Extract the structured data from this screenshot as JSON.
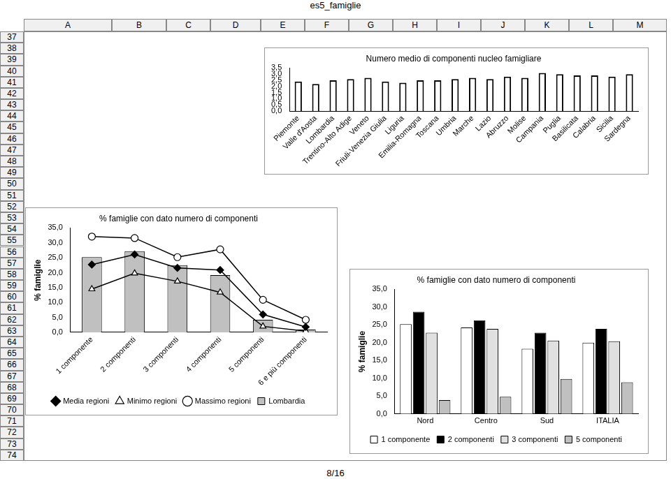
{
  "page": {
    "title": "es5_famiglie",
    "columns": [
      "A",
      "B",
      "C",
      "D",
      "E",
      "F",
      "G",
      "H",
      "I",
      "J",
      "K",
      "L",
      "M"
    ],
    "rows": [
      37,
      38,
      39,
      40,
      41,
      42,
      43,
      44,
      45,
      46,
      47,
      48,
      49,
      50,
      51,
      52,
      53,
      54,
      55,
      56,
      57,
      58,
      59,
      60,
      61,
      62,
      63,
      64,
      65,
      66,
      67,
      68,
      69,
      70,
      71,
      72,
      73,
      74
    ],
    "footer": "8/16"
  },
  "chart_data": [
    {
      "type": "bar",
      "title": "Numero medio di componenti nucleo famigliare",
      "categories": [
        "Piemonte",
        "Valle d'Aosta",
        "Lombardia",
        "Trentino-Alto Adige",
        "Veneto",
        "Friuli-Venezia Giulia",
        "Liguria",
        "Emilia-Romagna",
        "Toscana",
        "Umbria",
        "Marche",
        "Lazio",
        "Abruzzo",
        "Molise",
        "Campania",
        "Puglia",
        "Basilicata",
        "Calabria",
        "Sicilia",
        "Sardegna"
      ],
      "values": [
        2.4,
        2.2,
        2.5,
        2.6,
        2.7,
        2.4,
        2.3,
        2.5,
        2.5,
        2.6,
        2.7,
        2.6,
        2.8,
        2.7,
        3.1,
        3.0,
        2.9,
        2.9,
        2.8,
        3.0
      ],
      "color": "#ffffff",
      "ylim": [
        0,
        3.5
      ],
      "yticks": [
        {
          "value": 0,
          "label": "0,0"
        },
        {
          "value": 0.5,
          "label": "0,5"
        },
        {
          "value": 1,
          "label": "1,0"
        },
        {
          "value": 1.5,
          "label": "1,5"
        },
        {
          "value": 2,
          "label": "2,0"
        },
        {
          "value": 2.5,
          "label": "2,5"
        },
        {
          "value": 3,
          "label": "3,0"
        },
        {
          "value": 3.5,
          "label": "3,5"
        }
      ],
      "grid": false
    },
    {
      "type": "bar",
      "title": "% famiglie con dato numero di componenti",
      "y_label": "% famiglie",
      "categories": [
        "1 componente",
        "2 componenti",
        "3 componenti",
        "4 componenti",
        "5 componenti",
        "6 e più componenti"
      ],
      "series": [
        {
          "name": "Lombardia",
          "type": "bar",
          "color": "#c0c0c0",
          "marker": "square",
          "values": [
            25.2,
            27.2,
            22.5,
            19.2,
            4.2,
            0.9
          ]
        },
        {
          "name": "Media regioni",
          "type": "line",
          "color": "#000000",
          "marker": "diamond",
          "line_style": "solid",
          "values": [
            22.7,
            26.1,
            21.6,
            20.9,
            6.0,
            1.8
          ]
        },
        {
          "name": "Minimo regioni",
          "type": "line",
          "color": "#000000",
          "marker": "triangle-open",
          "line_style": "solid",
          "values": [
            14.5,
            19.8,
            17.1,
            13.4,
            2.0,
            0.4
          ]
        },
        {
          "name": "Massimo regioni",
          "type": "line",
          "color": "#000000",
          "marker": "circle-open",
          "line_style": "solid",
          "values": [
            32.1,
            31.6,
            25.2,
            27.8,
            10.9,
            4.2
          ]
        }
      ],
      "ylim": [
        0,
        35
      ],
      "yticks": [
        {
          "value": 0,
          "label": "0,0"
        },
        {
          "value": 5,
          "label": "5,0"
        },
        {
          "value": 10,
          "label": "10,0"
        },
        {
          "value": 15,
          "label": "15,0"
        },
        {
          "value": 20,
          "label": "20,0"
        },
        {
          "value": 25,
          "label": "25,0"
        },
        {
          "value": 30,
          "label": "30,0"
        },
        {
          "value": 35,
          "label": "35,0"
        }
      ],
      "grid": false,
      "legend": "bottom"
    },
    {
      "type": "bar",
      "title": "% famiglie con dato numero di componenti",
      "y_label": "% famiglie",
      "categories": [
        "Nord",
        "Centro",
        "Sud",
        "ITALIA"
      ],
      "series": [
        {
          "name": "1 componente",
          "color": "#ffffff",
          "values": [
            25.2,
            24.3,
            18.3,
            20.0
          ]
        },
        {
          "name": "2 componenti",
          "color": "#000000",
          "values": [
            28.7,
            26.3,
            22.8,
            23.9
          ]
        },
        {
          "name": "3 componenti",
          "color": "#e0e0e0",
          "values": [
            22.8,
            23.9,
            20.6,
            20.4
          ]
        },
        {
          "name": "5 componenti",
          "color": "#c0c0c0",
          "values": [
            3.9,
            4.8,
            9.8,
            8.9
          ]
        }
      ],
      "ylim": [
        0,
        35
      ],
      "yticks": [
        {
          "value": 0,
          "label": "0,0"
        },
        {
          "value": 5,
          "label": "5,0"
        },
        {
          "value": 10,
          "label": "10,0"
        },
        {
          "value": 15,
          "label": "15,0"
        },
        {
          "value": 20,
          "label": "20,0"
        },
        {
          "value": 25,
          "label": "25,0"
        },
        {
          "value": 30,
          "label": "30,0"
        },
        {
          "value": 35,
          "label": "35,0"
        }
      ],
      "grid": false,
      "legend": "bottom"
    }
  ]
}
